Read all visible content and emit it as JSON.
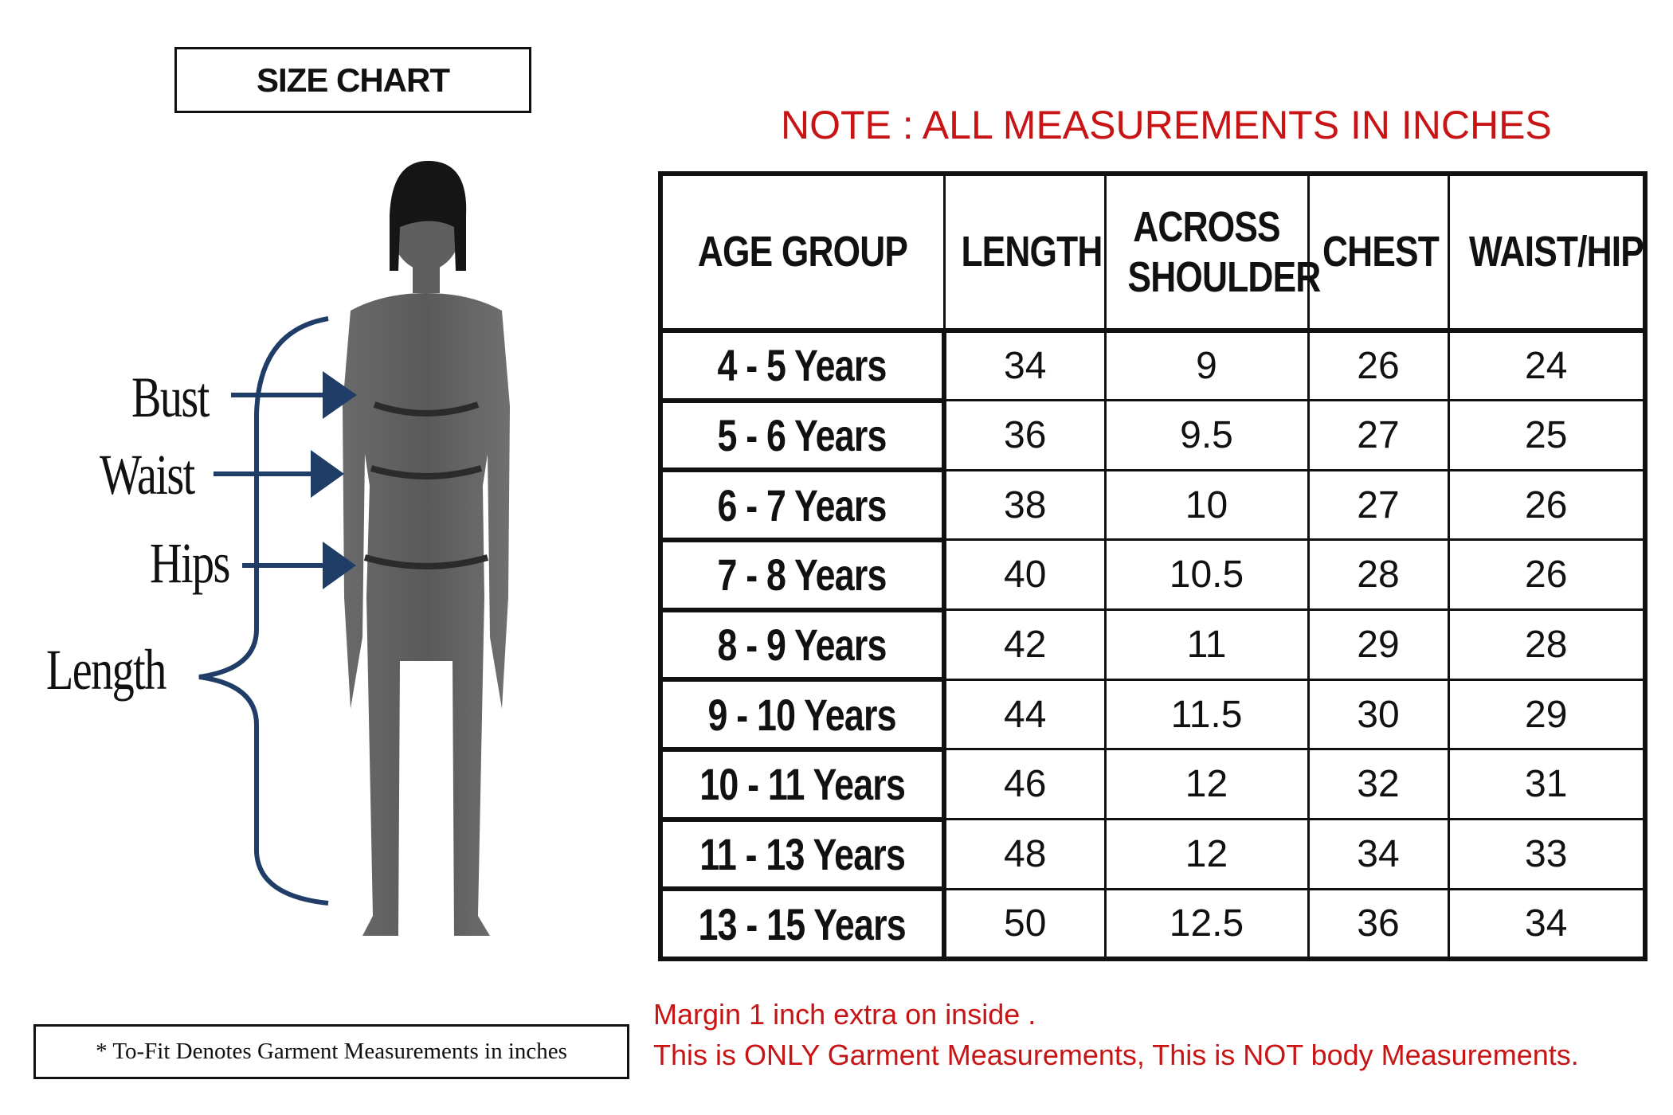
{
  "title": "SIZE CHART",
  "note": "NOTE : ALL MEASUREMENTS IN INCHES",
  "figure_labels": {
    "bust": "Bust",
    "waist": "Waist",
    "hips": "Hips",
    "length": "Length"
  },
  "footnote": "* To-Fit Denotes Garment Measurements in inches",
  "remarks": {
    "line1": "Margin 1 inch extra on inside .",
    "line2": "This is ONLY Garment Measurements, This is NOT body Measurements."
  },
  "table": {
    "headers": [
      "AGE GROUP",
      "LENGTH",
      "ACROSS SHOULDER",
      "CHEST",
      "WAIST/HIP"
    ],
    "header_lines": [
      [
        "AGE GROUP"
      ],
      [
        "LENGTH"
      ],
      [
        "ACROSS",
        "SHOULDER"
      ],
      [
        "CHEST"
      ],
      [
        "WAIST/HIP"
      ]
    ],
    "rows": [
      [
        "4 - 5 Years",
        "34",
        "9",
        "26",
        "24"
      ],
      [
        "5 - 6 Years",
        "36",
        "9.5",
        "27",
        "25"
      ],
      [
        "6 - 7 Years",
        "38",
        "10",
        "27",
        "26"
      ],
      [
        "7 - 8 Years",
        "40",
        "10.5",
        "28",
        "26"
      ],
      [
        "8 - 9 Years",
        "42",
        "11",
        "29",
        "28"
      ],
      [
        "9 - 10 Years",
        "44",
        "11.5",
        "30",
        "29"
      ],
      [
        "10 - 11 Years",
        "46",
        "12",
        "32",
        "31"
      ],
      [
        "11 - 13 Years",
        "48",
        "12",
        "34",
        "33"
      ],
      [
        "13 - 15 Years",
        "50",
        "12.5",
        "36",
        "34"
      ]
    ]
  },
  "colors": {
    "note_red": "#c81414",
    "arrow_blue": "#1f3d66",
    "silhouette": "#5d5d5d"
  }
}
